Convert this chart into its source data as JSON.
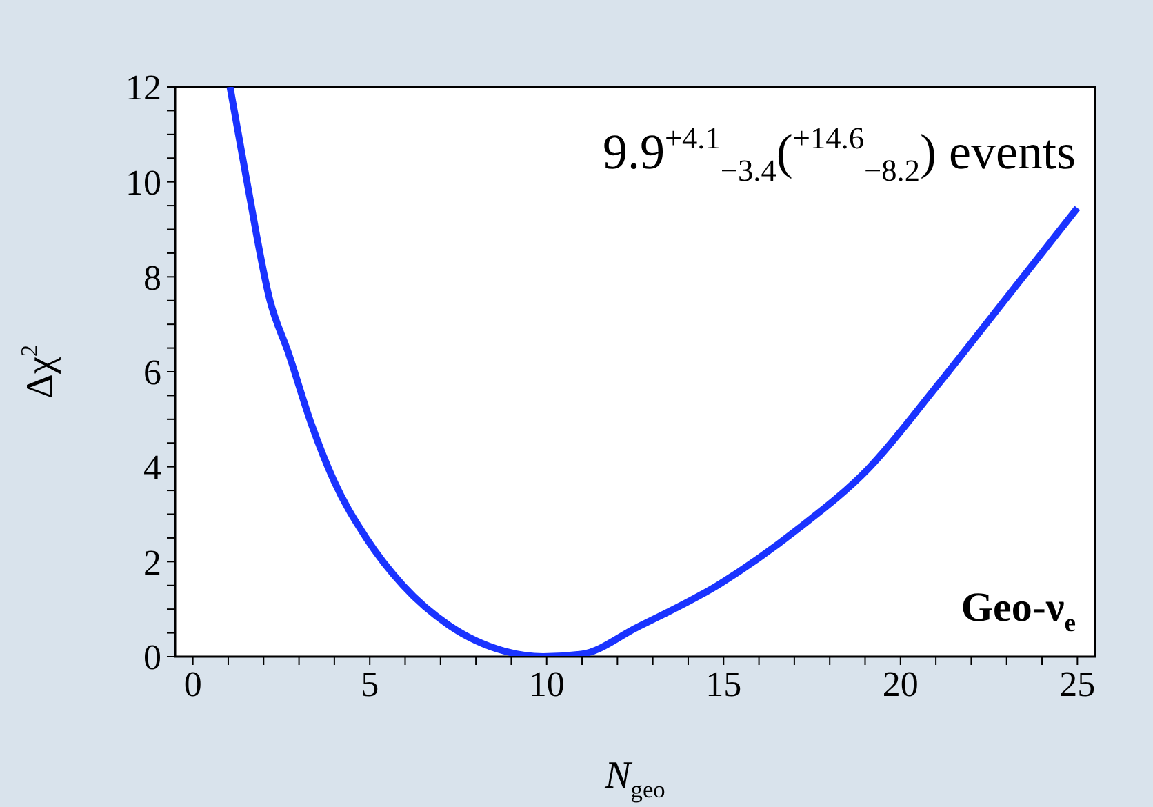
{
  "chart_data": {
    "type": "line",
    "xlabel": "N$_{geo}$",
    "ylabel": "Δχ$^{2}$",
    "annotations": [
      "9.9$^{+4.1}$$_{−3.4}$($^{+14.6}$$_{−8.2}$) events",
      "Geo-ν$_{e}$"
    ],
    "series": [
      {
        "color": "#1a33ff",
        "x": [
          1.05,
          1.53,
          2.18,
          2.7,
          3.35,
          3.99,
          4.9,
          5.94,
          7.24,
          8.79,
          9.9,
          10.98,
          12.54,
          14.89,
          17.12,
          19.08,
          21.03,
          22.99,
          25.0
        ],
        "values": [
          12,
          10,
          7.5,
          6.4,
          4.9,
          3.7,
          2.5,
          1.5,
          0.66,
          0.12,
          0,
          0.05,
          0.61,
          1.53,
          2.7,
          3.95,
          5.7,
          7.55,
          9.45
        ]
      }
    ],
    "xlim": [
      -0.5,
      25.5
    ],
    "xticks": [
      0,
      {
        "value": 1,
        "label": null
      },
      {
        "value": 2,
        "label": null
      },
      {
        "value": 3,
        "label": null
      },
      {
        "value": 4,
        "label": null
      },
      5,
      {
        "value": 6,
        "label": null
      },
      {
        "value": 7,
        "label": null
      },
      {
        "value": 8,
        "label": null
      },
      {
        "value": 9,
        "label": null
      },
      10,
      {
        "value": 11,
        "label": null
      },
      {
        "value": 12,
        "label": null
      },
      {
        "value": 13,
        "label": null
      },
      {
        "value": 14,
        "label": null
      },
      15,
      {
        "value": 16,
        "label": null
      },
      {
        "value": 17,
        "label": null
      },
      {
        "value": 18,
        "label": null
      },
      {
        "value": 19,
        "label": null
      },
      20,
      {
        "value": 21,
        "label": null
      },
      {
        "value": 22,
        "label": null
      },
      {
        "value": 23,
        "label": null
      },
      {
        "value": 24,
        "label": null
      },
      25
    ],
    "ylim": [
      0,
      12
    ],
    "yticks": [
      0,
      {
        "value": 0.5,
        "label": null
      },
      {
        "value": 1,
        "label": null
      },
      {
        "value": 1.5,
        "label": null
      },
      2,
      {
        "value": 2.5,
        "label": null
      },
      {
        "value": 3,
        "label": null
      },
      {
        "value": 3.5,
        "label": null
      },
      4,
      {
        "value": 4.5,
        "label": null
      },
      {
        "value": 5,
        "label": null
      },
      {
        "value": 5.5,
        "label": null
      },
      6,
      {
        "value": 6.5,
        "label": null
      },
      {
        "value": 7,
        "label": null
      },
      {
        "value": 7.5,
        "label": null
      },
      8,
      {
        "value": 8.5,
        "label": null
      },
      {
        "value": 9,
        "label": null
      },
      {
        "value": 9.5,
        "label": null
      },
      10,
      {
        "value": 10.5,
        "label": null
      },
      {
        "value": 11,
        "label": null
      },
      {
        "value": 11.5,
        "label": null
      },
      12
    ],
    "marker": "none",
    "line_style": "solid"
  }
}
